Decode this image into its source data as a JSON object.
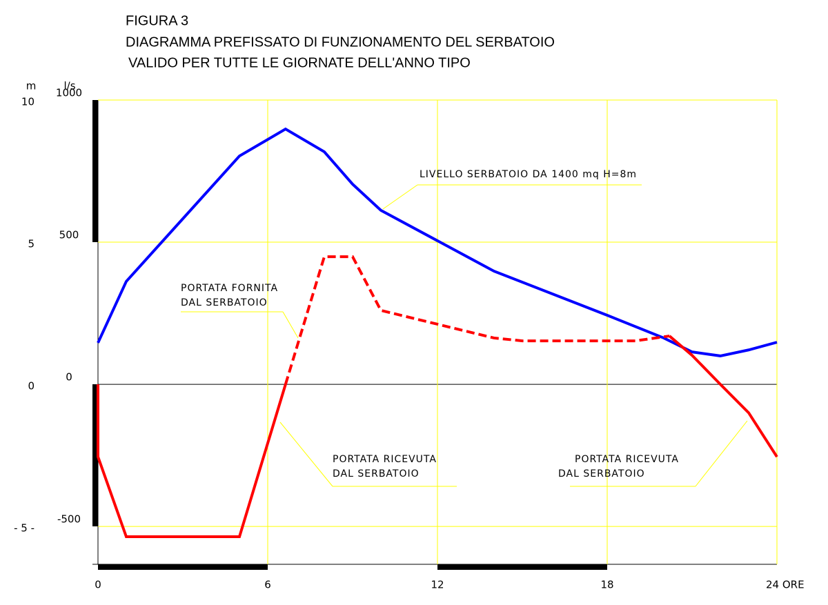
{
  "chart_data": {
    "type": "line",
    "title": "FIGURA 3",
    "subtitle": [
      "DIAGRAMMA PREFISSATO DI FUNZIONAMENTO DEL SERBATOIO",
      "VALIDO PER TUTTE LE GIORNATE DELL'ANNO TIPO"
    ],
    "y_label": "m",
    "y2_label": "l/s",
    "xlim": [
      0,
      24
    ],
    "xticks": [
      0,
      6,
      12,
      18,
      {
        "value": 24,
        "label": "24 ORE"
      }
    ],
    "ylim": [
      -6.33,
      10
    ],
    "yticks": [
      10,
      5,
      0,
      {
        "value": -5,
        "label": "- 5 -"
      }
    ],
    "y2lim": [
      -633,
      1000
    ],
    "y2ticks": [
      1000,
      500,
      0,
      -500
    ],
    "grid": true,
    "grid_color": "#ffff00",
    "series": [
      {
        "color": "#0000ff",
        "x": [
          0,
          1,
          5,
          6.63,
          8,
          9,
          10,
          14,
          18,
          20,
          21,
          22,
          23,
          24
        ],
        "values": [
          1.46,
          3.62,
          8.03,
          8.98,
          8.18,
          7.04,
          6.12,
          3.98,
          2.43,
          1.63,
          1.14,
          1.0,
          1.21,
          1.48
        ]
      },
      {
        "color": "#ff0000",
        "axis": "y2",
        "x": [
          0,
          0,
          1,
          5,
          6.63
        ],
        "values": [
          0,
          -255,
          -536,
          -536,
          0
        ]
      },
      {
        "color": "#ff0000",
        "axis": "y2",
        "dash": true,
        "x": [
          6.63,
          8,
          9,
          10,
          14,
          15,
          19,
          20.2
        ],
        "values": [
          0,
          449,
          449,
          260,
          163,
          153,
          153,
          170
        ]
      },
      {
        "color": "#ff0000",
        "axis": "y2",
        "x": [
          20.2,
          21,
          22,
          23,
          24
        ],
        "values": [
          170,
          102,
          0,
          -100,
          -255
        ]
      }
    ],
    "annotations": [
      [
        "LIVELLO SERBATOIO DA 1400 mq H=8m"
      ],
      [
        "PORTATA FORNITA",
        "DAL SERBATOIO"
      ],
      [
        "PORTATA RICEVUTA",
        "DAL SERBATOIO"
      ],
      [
        "PORTATA RICEVUTA",
        "DAL SERBATOIO"
      ]
    ]
  }
}
